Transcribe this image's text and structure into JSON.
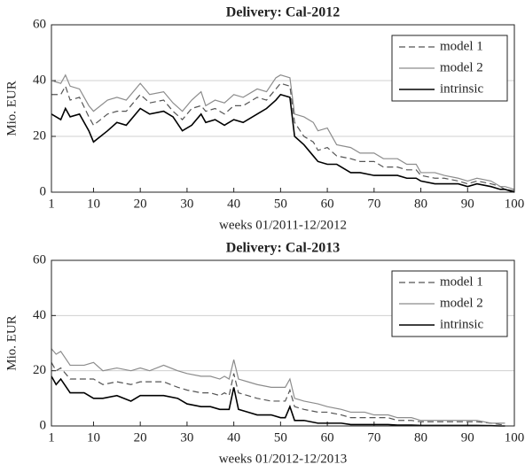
{
  "chart_data": [
    {
      "type": "line",
      "title": "Delivery: Cal-2012",
      "xlabel": "weeks 01/2011-12/2012",
      "ylabel": "Mio. EUR",
      "x": [
        1,
        3,
        4,
        5,
        7,
        9,
        10,
        13,
        15,
        17,
        20,
        22,
        25,
        27,
        29,
        31,
        33,
        34,
        36,
        38,
        40,
        42,
        45,
        47,
        49,
        50,
        52,
        53,
        55,
        57,
        58,
        60,
        62,
        65,
        67,
        70,
        72,
        75,
        77,
        79,
        80,
        83,
        85,
        88,
        90,
        92,
        95,
        97,
        98,
        100
      ],
      "series": [
        {
          "name": "model 1",
          "color": "#555555",
          "dash": true,
          "values": [
            35,
            35,
            38,
            33,
            34,
            27,
            24,
            28,
            29,
            29,
            35,
            32,
            33,
            29,
            26,
            30,
            31,
            29,
            30,
            28,
            31,
            31,
            34,
            33,
            37,
            39,
            38,
            25,
            20,
            18,
            15,
            16,
            13,
            12,
            11,
            11,
            9,
            9,
            8,
            8,
            6,
            5,
            5,
            4,
            3,
            4,
            3,
            2,
            1,
            0.5
          ]
        },
        {
          "name": "model 2",
          "color": "#8c8c8c",
          "dash": false,
          "values": [
            40,
            39,
            42,
            38,
            37,
            31,
            29,
            33,
            34,
            33,
            39,
            35,
            36,
            32,
            29,
            33,
            36,
            31,
            33,
            32,
            35,
            34,
            37,
            36,
            41,
            42,
            41,
            28,
            27,
            25,
            22,
            23,
            17,
            16,
            14,
            14,
            12,
            12,
            10,
            10,
            7,
            7,
            6,
            5,
            4,
            5,
            4,
            2,
            2,
            1
          ]
        },
        {
          "name": "intrinsic",
          "color": "#000000",
          "dash": false,
          "values": [
            28,
            26,
            30,
            27,
            28,
            22,
            18,
            22,
            25,
            24,
            30,
            28,
            29,
            27,
            22,
            24,
            28,
            25,
            26,
            24,
            26,
            25,
            28,
            30,
            33,
            35,
            34,
            20,
            17,
            13,
            11,
            10,
            10,
            7,
            7,
            6,
            6,
            6,
            5,
            5,
            4,
            3,
            3,
            3,
            2,
            3,
            2,
            1,
            1,
            0
          ]
        }
      ],
      "xlim": [
        1,
        100
      ],
      "xticks": [
        1,
        10,
        20,
        30,
        40,
        50,
        60,
        70,
        80,
        90,
        100
      ],
      "ylim": [
        0,
        60
      ],
      "yticks": [
        0,
        20,
        40,
        60
      ],
      "grid": true,
      "legend": "northeast"
    },
    {
      "type": "line",
      "title": "Delivery: Cal-2013",
      "xlabel": "weeks 01/2012-12/2013",
      "ylabel": "Mio. EUR",
      "x": [
        1,
        2,
        3,
        5,
        8,
        10,
        12,
        15,
        18,
        20,
        22,
        25,
        28,
        30,
        33,
        35,
        37,
        38,
        39,
        40,
        41,
        43,
        45,
        48,
        50,
        51,
        52,
        53,
        55,
        58,
        60,
        63,
        65,
        68,
        70,
        73,
        75,
        78,
        80,
        83,
        85,
        88,
        90,
        92,
        95,
        97,
        98
      ],
      "series": [
        {
          "name": "model 1",
          "color": "#555555",
          "dash": true,
          "values": [
            23,
            20,
            21,
            17,
            17,
            17,
            15,
            16,
            15,
            16,
            16,
            16,
            14,
            13,
            12,
            12,
            11,
            12,
            11,
            19,
            12,
            11,
            10,
            9,
            9,
            9,
            13,
            7,
            6,
            5,
            5,
            4,
            3,
            3,
            3,
            3,
            2,
            2,
            1.5,
            1.5,
            1.5,
            1.5,
            1.5,
            1.5,
            1,
            0.5,
            0.5
          ]
        },
        {
          "name": "model 2",
          "color": "#8c8c8c",
          "dash": false,
          "values": [
            28,
            26,
            27,
            22,
            22,
            23,
            20,
            21,
            20,
            21,
            20,
            22,
            20,
            19,
            18,
            18,
            17,
            18,
            17,
            24,
            17,
            16,
            15,
            14,
            14,
            14,
            17,
            10,
            9,
            8,
            7,
            6,
            5,
            5,
            4,
            4,
            3,
            3,
            2,
            2,
            2,
            2,
            2,
            2,
            1,
            1,
            1
          ]
        },
        {
          "name": "intrinsic",
          "color": "#000000",
          "dash": false,
          "values": [
            18,
            15,
            17,
            12,
            12,
            10,
            10,
            11,
            9,
            11,
            11,
            11,
            10,
            8,
            7,
            7,
            6,
            6,
            6,
            14,
            6,
            5,
            4,
            4,
            3,
            3,
            7,
            2,
            2,
            1,
            1,
            1,
            0.5,
            0.5,
            0.5,
            0.5,
            0.3,
            0.3,
            0.2,
            0.2,
            0.2,
            0.2,
            0.2,
            0.2,
            0.1,
            0,
            0
          ]
        }
      ],
      "xlim": [
        1,
        100
      ],
      "xticks": [
        1,
        10,
        20,
        30,
        40,
        50,
        60,
        70,
        80,
        90,
        100
      ],
      "ylim": [
        0,
        60
      ],
      "yticks": [
        0,
        20,
        40,
        60
      ],
      "grid": true,
      "legend": "northeast"
    }
  ]
}
